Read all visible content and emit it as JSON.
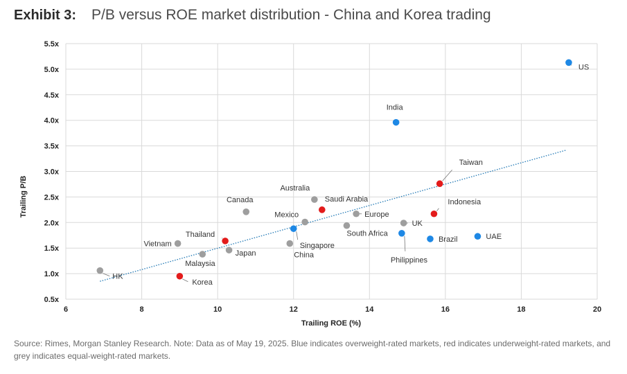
{
  "header": {
    "exhibit": "Exhibit 3:",
    "title": "P/B versus ROE market distribution - China and Korea trading"
  },
  "source_note": "Source: Rimes, Morgan Stanley Research. Note: Data as of May 19, 2025. Blue indicates overweight-rated markets, red indicates underweight-rated markets, and grey indicates equal-weight-rated markets.",
  "colors": {
    "overweight": "#1e88e5",
    "underweight": "#e31b1b",
    "equalweight": "#9e9e9e",
    "trend": "#1f77b4"
  },
  "chart_data": {
    "type": "scatter",
    "xlabel": "Trailing ROE (%)",
    "ylabel": "Trailing P/B",
    "xlim": [
      6,
      20
    ],
    "ylim": [
      0.5,
      5.5
    ],
    "x_ticks": [
      "6",
      "8",
      "10",
      "12",
      "14",
      "16",
      "18",
      "20"
    ],
    "y_ticks": [
      "0.5x",
      "1.0x",
      "1.5x",
      "2.0x",
      "2.5x",
      "3.0x",
      "3.5x",
      "4.0x",
      "4.5x",
      "5.0x",
      "5.5x"
    ],
    "grid": true,
    "trendline": {
      "x": [
        6.9,
        19.2
      ],
      "y": [
        0.85,
        3.42
      ]
    },
    "points": [
      {
        "name": "US",
        "x": 19.25,
        "y": 5.13,
        "rating": "overweight"
      },
      {
        "name": "India",
        "x": 14.7,
        "y": 3.96,
        "rating": "overweight"
      },
      {
        "name": "Taiwan",
        "x": 15.85,
        "y": 2.76,
        "rating": "underweight"
      },
      {
        "name": "Indonesia",
        "x": 15.7,
        "y": 2.17,
        "rating": "underweight"
      },
      {
        "name": "Australia",
        "x": 12.55,
        "y": 2.45,
        "rating": "equalweight"
      },
      {
        "name": "Saudi Arabia",
        "x": 12.75,
        "y": 2.25,
        "rating": "underweight"
      },
      {
        "name": "Canada",
        "x": 10.75,
        "y": 2.21,
        "rating": "equalweight"
      },
      {
        "name": "Europe",
        "x": 13.65,
        "y": 2.17,
        "rating": "equalweight"
      },
      {
        "name": "Mexico",
        "x": 12.3,
        "y": 2.01,
        "rating": "equalweight"
      },
      {
        "name": "UK",
        "x": 14.9,
        "y": 1.99,
        "rating": "equalweight"
      },
      {
        "name": "South Africa",
        "x": 13.4,
        "y": 1.94,
        "rating": "equalweight"
      },
      {
        "name": "Singapore",
        "x": 12.0,
        "y": 1.88,
        "rating": "overweight"
      },
      {
        "name": "Philippines",
        "x": 14.85,
        "y": 1.79,
        "rating": "overweight"
      },
      {
        "name": "Brazil",
        "x": 15.6,
        "y": 1.68,
        "rating": "overweight"
      },
      {
        "name": "UAE",
        "x": 16.85,
        "y": 1.73,
        "rating": "overweight"
      },
      {
        "name": "Thailand",
        "x": 10.2,
        "y": 1.64,
        "rating": "underweight"
      },
      {
        "name": "Vietnam",
        "x": 8.95,
        "y": 1.59,
        "rating": "equalweight"
      },
      {
        "name": "China",
        "x": 11.9,
        "y": 1.59,
        "rating": "equalweight"
      },
      {
        "name": "Japan",
        "x": 10.3,
        "y": 1.46,
        "rating": "equalweight"
      },
      {
        "name": "Malaysia",
        "x": 9.6,
        "y": 1.38,
        "rating": "equalweight"
      },
      {
        "name": "HK",
        "x": 6.9,
        "y": 1.06,
        "rating": "equalweight"
      },
      {
        "name": "Korea",
        "x": 9.0,
        "y": 0.95,
        "rating": "underweight"
      }
    ]
  }
}
